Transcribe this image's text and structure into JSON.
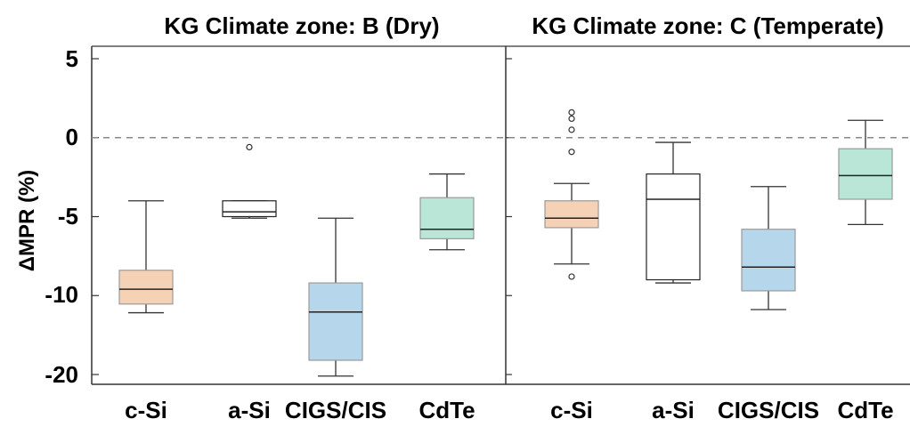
{
  "chart_data": {
    "type": "box",
    "ylabel": "ΔMPR (%)",
    "y_ticks": [
      "5",
      "0",
      "-5",
      "-10",
      "-20"
    ],
    "reference_line": {
      "y": 0,
      "style": "dashed",
      "color": "#888888"
    },
    "legend": "none",
    "grid": false,
    "categories": [
      "c-Si",
      "a-Si",
      "CIGS/CIS",
      "CdTe"
    ],
    "colors": {
      "c-Si": "#f5d2b5",
      "a-Si": "#ffffff",
      "CIGS/CIS": "#b6d6ec",
      "CdTe": "#b9e6d6"
    },
    "panels": [
      {
        "title": "KG Climate zone: B (Dry)",
        "boxes": [
          {
            "category": "c-Si",
            "whisker_low": -12.2,
            "q1": -11.1,
            "median": -9.6,
            "q3": -8.4,
            "whisker_high": -4.0,
            "outliers": []
          },
          {
            "category": "a-Si",
            "whisker_low": -5.1,
            "q1": -5.0,
            "median": -4.7,
            "q3": -4.0,
            "whisker_high": -4.0,
            "outliers": [
              -0.6
            ]
          },
          {
            "category": "CIGS/CIS",
            "whisker_low": -20.2,
            "q1": -18.2,
            "median": -12.1,
            "q3": -9.2,
            "whisker_high": -5.1,
            "outliers": []
          },
          {
            "category": "CdTe",
            "whisker_low": -7.1,
            "q1": -6.4,
            "median": -5.8,
            "q3": -3.8,
            "whisker_high": -2.3,
            "outliers": []
          }
        ]
      },
      {
        "title": "KG Climate zone: C (Temperate)",
        "boxes": [
          {
            "category": "c-Si",
            "whisker_low": -8.0,
            "q1": -5.7,
            "median": -5.1,
            "q3": -4.0,
            "whisker_high": -2.9,
            "outliers": [
              -8.8,
              -0.9,
              0.5,
              1.2,
              1.6
            ]
          },
          {
            "category": "a-Si",
            "whisker_low": -9.2,
            "q1": -9.0,
            "median": -3.9,
            "q3": -2.3,
            "whisker_high": -0.3,
            "outliers": []
          },
          {
            "category": "CIGS/CIS",
            "whisker_low": -11.8,
            "q1": -9.7,
            "median": -8.2,
            "q3": -5.8,
            "whisker_high": -3.1,
            "outliers": []
          },
          {
            "category": "CdTe",
            "whisker_low": -5.5,
            "q1": -3.9,
            "median": -2.4,
            "q3": -0.7,
            "whisker_high": 1.1,
            "outliers": []
          }
        ]
      }
    ]
  }
}
